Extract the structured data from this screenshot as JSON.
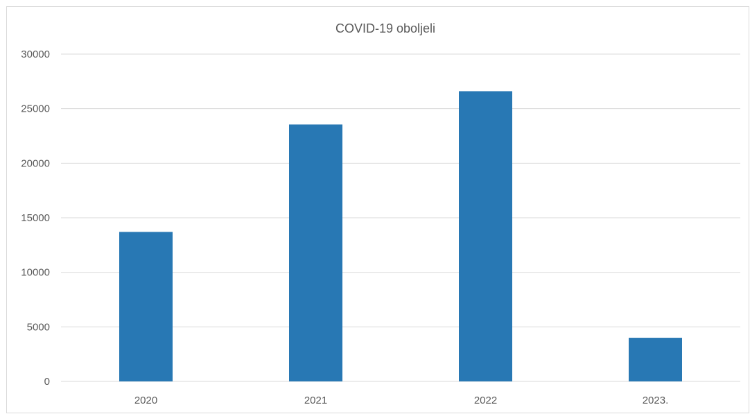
{
  "chart_data": {
    "type": "bar",
    "title": "COVID-19 oboljeli",
    "categories": [
      "2020",
      "2021",
      "2022",
      "2023."
    ],
    "series": [
      {
        "values": [
          13700,
          23550,
          26600,
          4000
        ]
      }
    ],
    "ylim": [
      0,
      30000
    ],
    "yticks": [
      0,
      5000,
      10000,
      15000,
      20000,
      25000,
      30000
    ],
    "ytick_labels": [
      "0",
      "5000",
      "10000",
      "15000",
      "20000",
      "25000",
      "30000"
    ],
    "xlabel": "",
    "ylabel": "",
    "grid": true,
    "legend": "none",
    "colors": {
      "bar": "#2878b4",
      "grid": "#d9d9d9",
      "text": "#595959"
    }
  }
}
